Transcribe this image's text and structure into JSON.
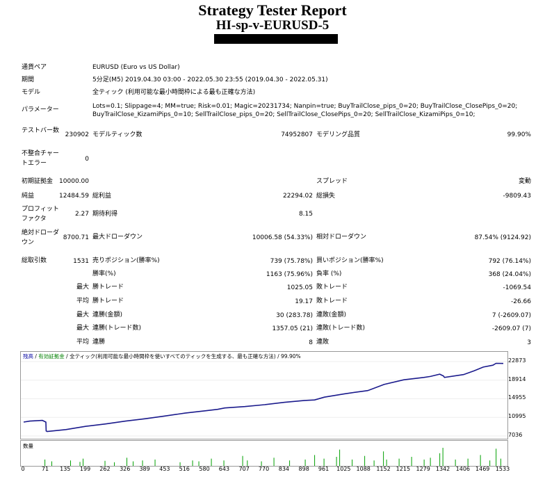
{
  "header": {
    "title": "Strategy Tester Report",
    "subtitle": "HI-sp-v-EURUSD-5"
  },
  "info": {
    "symbol_label": "通貨ペア",
    "symbol_value": "EURUSD (Euro vs US Dollar)",
    "period_label": "期間",
    "period_value": "5分足(M5) 2019.04.30 03:00 - 2022.05.30 23:55 (2019.04.30 - 2022.05.31)",
    "model_label": "モデル",
    "model_value": "全ティック (利用可能な最小時間枠による最も正確な方法)",
    "params_label": "パラメーター",
    "params_line1": "Lots=0.1; Slippage=4; MM=true; Risk=0.01; Magic=20231734; Nanpin=true; BuyTrailClose_pips_0=20; BuyTrailClose_ClosePips_0=20;",
    "params_line2": "BuyTrailClose_KizamiPips_0=10; SellTrailClose_pips_0=20; SellTrailClose_ClosePips_0=20; SellTrailClose_KizamiPips_0=10;"
  },
  "stats": {
    "bars_label": "テストバー数",
    "bars_value": "230902",
    "ticks_label": "モデルティック数",
    "ticks_value": "74952807",
    "quality_label": "モデリング品質",
    "quality_value": "99.90%",
    "mismatch_label": "不整合チャートエラー",
    "mismatch_value": "0",
    "deposit_label": "初期証拠金",
    "deposit_value": "10000.00",
    "spread_label": "スプレッド",
    "spread_value": "変動",
    "net_label": "純益",
    "net_value": "12484.59",
    "gross_profit_label": "総利益",
    "gross_profit_value": "22294.02",
    "gross_loss_label": "総損失",
    "gross_loss_value": "-9809.43",
    "pf_label": "プロフィットファクタ",
    "pf_value": "2.27",
    "expected_label": "期待利得",
    "expected_value": "8.15",
    "abs_dd_label": "絶対ドローダウン",
    "abs_dd_value": "8700.71",
    "max_dd_label": "最大ドローダウン",
    "max_dd_value": "10006.58 (54.33%)",
    "rel_dd_label": "相対ドローダウン",
    "rel_dd_value": "87.54% (9124.92)",
    "trades_label": "総取引数",
    "trades_value": "1531",
    "short_label": "売りポジション(勝率%)",
    "short_value": "739 (75.78%)",
    "long_label": "買いポジション(勝率%)",
    "long_value": "792 (76.14%)",
    "win_pct_label": "勝率(%)",
    "win_pct_value": "1163 (75.96%)",
    "loss_pct_label": "負率 (%)",
    "loss_pct_value": "368 (24.04%)",
    "max_label": "最大",
    "avg_label": "平均",
    "largest_win_label": "勝トレード",
    "largest_win_value": "1025.05",
    "largest_loss_label": "敗トレード",
    "largest_loss_value": "-1069.54",
    "avg_win_label": "勝トレード",
    "avg_win_value": "19.17",
    "avg_loss_label": "敗トレード",
    "avg_loss_value": "-26.66",
    "max_cons_wins_label": "連勝(金額)",
    "max_cons_wins_value": "30 (283.78)",
    "max_cons_losses_label": "連敗(金額)",
    "max_cons_losses_value": "7 (-2609.07)",
    "max_cons_profit_label": "連勝(トレード数)",
    "max_cons_profit_value": "1357.05 (21)",
    "max_cons_loss_label": "連敗(トレード数)",
    "max_cons_loss_value": "-2609.07 (7)",
    "avg_cons_wins_label": "連勝",
    "avg_cons_wins_value": "8",
    "avg_cons_losses_label": "連敗",
    "avg_cons_losses_value": "3"
  },
  "chart_legend": {
    "balance": "残高",
    "sep1": " / ",
    "equity": "有効証拠金",
    "sep2": " / ",
    "model": "全ティック(利用可能な最小時間枠を使いすべてのティックを生成する、最も正確な方法)",
    "sep3": " / ",
    "quality": "99.90%"
  },
  "volume_label": "数量",
  "chart_data": {
    "type": "line",
    "yticks": [
      "22873",
      "18914",
      "14955",
      "10995",
      "7036"
    ],
    "xticks": [
      "0",
      "71",
      "135",
      "199",
      "262",
      "326",
      "389",
      "453",
      "516",
      "580",
      "643",
      "707",
      "770",
      "834",
      "898",
      "961",
      "1025",
      "1088",
      "1152",
      "1215",
      "1279",
      "1342",
      "1406",
      "1469",
      "1533"
    ],
    "ylim": [
      7036,
      22873
    ],
    "xlim": [
      0,
      1533
    ],
    "series": [
      {
        "values": [
          [
            0,
            10000
          ],
          [
            20,
            10200
          ],
          [
            60,
            10350
          ],
          [
            71,
            10000
          ],
          [
            72,
            8100
          ],
          [
            75,
            8000
          ],
          [
            135,
            8400
          ],
          [
            199,
            9100
          ],
          [
            262,
            9600
          ],
          [
            326,
            10200
          ],
          [
            389,
            10700
          ],
          [
            453,
            11300
          ],
          [
            516,
            11900
          ],
          [
            580,
            12400
          ],
          [
            620,
            12700
          ],
          [
            643,
            13000
          ],
          [
            707,
            13300
          ],
          [
            770,
            13700
          ],
          [
            834,
            14200
          ],
          [
            898,
            14600
          ],
          [
            930,
            14700
          ],
          [
            961,
            15300
          ],
          [
            1025,
            16000
          ],
          [
            1088,
            16600
          ],
          [
            1100,
            16700
          ],
          [
            1152,
            18000
          ],
          [
            1215,
            19000
          ],
          [
            1279,
            19500
          ],
          [
            1300,
            19700
          ],
          [
            1330,
            20200
          ],
          [
            1342,
            19800
          ],
          [
            1345,
            19500
          ],
          [
            1406,
            20100
          ],
          [
            1440,
            20900
          ],
          [
            1469,
            21700
          ],
          [
            1500,
            22100
          ],
          [
            1510,
            22500
          ],
          [
            1533,
            22480
          ]
        ]
      }
    ],
    "volume_spikes": [
      [
        68,
        0.35
      ],
      [
        90,
        0.25
      ],
      [
        150,
        0.3
      ],
      [
        180,
        0.22
      ],
      [
        190,
        0.4
      ],
      [
        260,
        0.28
      ],
      [
        290,
        0.2
      ],
      [
        330,
        0.45
      ],
      [
        350,
        0.25
      ],
      [
        380,
        0.3
      ],
      [
        420,
        0.35
      ],
      [
        500,
        0.2
      ],
      [
        540,
        0.3
      ],
      [
        560,
        0.25
      ],
      [
        600,
        0.4
      ],
      [
        640,
        0.3
      ],
      [
        700,
        0.55
      ],
      [
        715,
        0.3
      ],
      [
        760,
        0.25
      ],
      [
        800,
        0.45
      ],
      [
        850,
        0.3
      ],
      [
        900,
        0.35
      ],
      [
        930,
        0.6
      ],
      [
        960,
        0.4
      ],
      [
        1000,
        0.5
      ],
      [
        1010,
        0.9
      ],
      [
        1050,
        0.35
      ],
      [
        1090,
        0.55
      ],
      [
        1120,
        0.3
      ],
      [
        1150,
        0.8
      ],
      [
        1160,
        0.35
      ],
      [
        1200,
        0.4
      ],
      [
        1240,
        0.5
      ],
      [
        1280,
        0.35
      ],
      [
        1300,
        0.45
      ],
      [
        1330,
        0.7
      ],
      [
        1340,
        1.0
      ],
      [
        1380,
        0.35
      ],
      [
        1420,
        0.4
      ],
      [
        1460,
        0.6
      ],
      [
        1490,
        0.3
      ],
      [
        1510,
        0.95
      ],
      [
        1525,
        0.4
      ]
    ]
  }
}
